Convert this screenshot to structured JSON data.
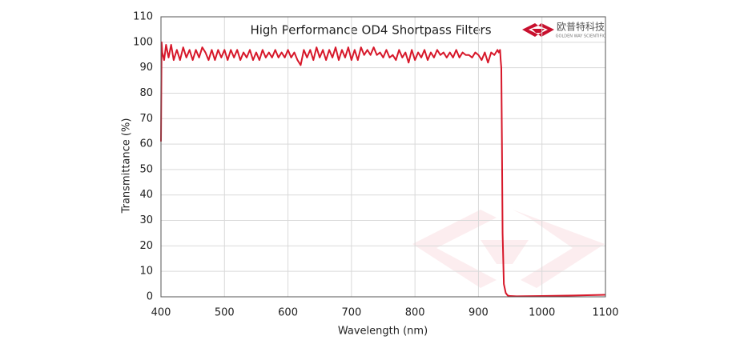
{
  "chart_data": {
    "type": "line",
    "title": "High Performance OD4 Shortpass  Filters",
    "xlabel": "Wavelength (nm)",
    "ylabel": "Transmittance (%)",
    "xlim": [
      400,
      1100
    ],
    "xticks": [
      400,
      500,
      600,
      700,
      800,
      900,
      1000,
      1100
    ],
    "ylim": [
      0,
      110
    ],
    "yticks": [
      0,
      10,
      20,
      30,
      40,
      50,
      60,
      70,
      80,
      90,
      100,
      110
    ],
    "grid": true,
    "x": [
      400,
      401,
      402,
      405,
      408,
      412,
      416,
      420,
      425,
      430,
      435,
      440,
      445,
      450,
      455,
      460,
      465,
      470,
      475,
      480,
      485,
      490,
      495,
      500,
      505,
      510,
      515,
      520,
      525,
      530,
      535,
      540,
      545,
      550,
      555,
      560,
      565,
      570,
      575,
      580,
      585,
      590,
      595,
      600,
      605,
      610,
      615,
      620,
      625,
      630,
      635,
      640,
      645,
      650,
      655,
      660,
      665,
      670,
      675,
      680,
      685,
      690,
      695,
      700,
      705,
      710,
      715,
      720,
      725,
      730,
      735,
      740,
      745,
      750,
      755,
      760,
      765,
      770,
      775,
      780,
      785,
      790,
      795,
      800,
      805,
      810,
      815,
      820,
      825,
      830,
      835,
      840,
      845,
      850,
      855,
      860,
      865,
      870,
      875,
      880,
      885,
      890,
      895,
      900,
      905,
      910,
      915,
      920,
      925,
      930,
      932,
      934,
      935,
      936,
      937,
      938,
      940,
      943,
      946,
      950,
      960,
      1000,
      1050,
      1100
    ],
    "series": [
      {
        "color": "#d7182a",
        "values": [
          61,
          100,
          96,
          93,
          99,
          94,
          99,
          93,
          97,
          93,
          98,
          94,
          97,
          93,
          97,
          94,
          98,
          96,
          93,
          97,
          93,
          97,
          94,
          97,
          93,
          97,
          94,
          97,
          93,
          96,
          94,
          97,
          93,
          96,
          93,
          97,
          94,
          96,
          94,
          97,
          94,
          96,
          94,
          97,
          94,
          96,
          93,
          91,
          97,
          94,
          97,
          93,
          98,
          94,
          97,
          93,
          97,
          94,
          98,
          93,
          97,
          94,
          98,
          93,
          97,
          93,
          98,
          95,
          97,
          95,
          98,
          95,
          96,
          94,
          97,
          94,
          95,
          93,
          97,
          94,
          96,
          92,
          97,
          93,
          96,
          94,
          97,
          93,
          96,
          94,
          97,
          95,
          96,
          94,
          96,
          94,
          97,
          94,
          96,
          95,
          95,
          94,
          96,
          95,
          93,
          96,
          92,
          96,
          95,
          97,
          96,
          97,
          93,
          90,
          60,
          25,
          5,
          1.5,
          0.5,
          0.3,
          0.2,
          0.3,
          0.5,
          0.8
        ]
      }
    ]
  },
  "logo": {
    "name": "欧普特科技",
    "subtitle": "GOLDEN WAY SCIENTIFIC"
  }
}
